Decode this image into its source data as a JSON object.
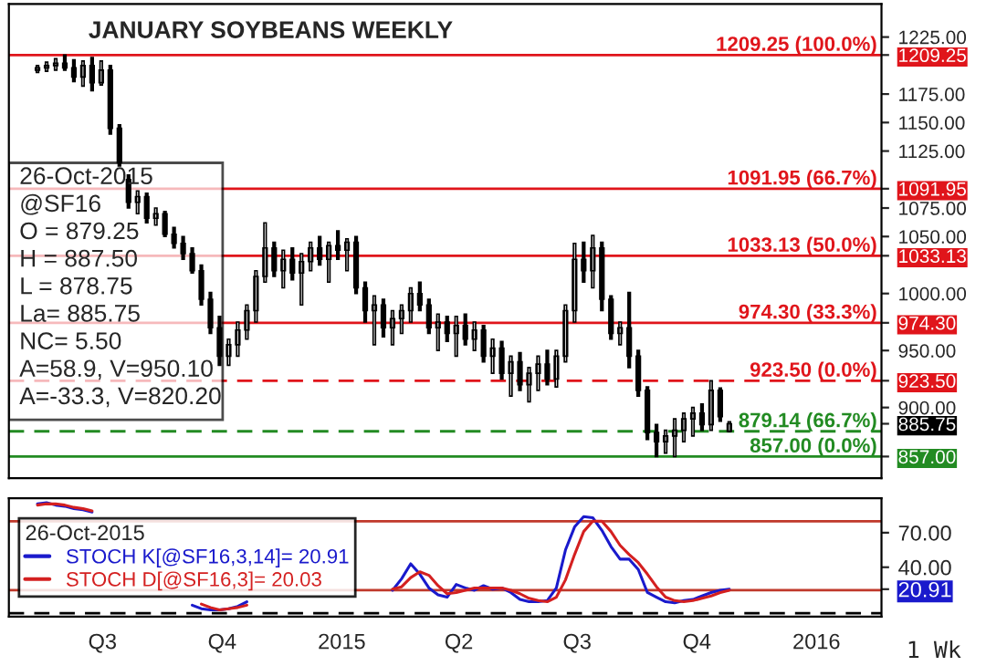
{
  "chart_data": [
    {
      "type": "candlestick",
      "title": "JANUARY SOYBEANS WEEKLY",
      "color": "#000000",
      "x": [
        "2014-05-12",
        "2014-05-19",
        "2014-05-26",
        "2014-06-02",
        "2014-06-09",
        "2014-06-16",
        "2014-06-23",
        "2014-06-30",
        "2014-07-07",
        "2014-07-14",
        "2014-07-21",
        "2014-07-28",
        "2014-08-04",
        "2014-08-11",
        "2014-08-18",
        "2014-08-25",
        "2014-09-01",
        "2014-09-08",
        "2014-09-15",
        "2014-09-22",
        "2014-09-29",
        "2014-10-06",
        "2014-10-13",
        "2014-10-20",
        "2014-10-27",
        "2014-11-03",
        "2014-11-10",
        "2014-11-17",
        "2014-11-24",
        "2014-12-01",
        "2014-12-08",
        "2014-12-15",
        "2014-12-22",
        "2014-12-29",
        "2015-01-05",
        "2015-01-12",
        "2015-01-19",
        "2015-01-26",
        "2015-02-02",
        "2015-02-09",
        "2015-02-16",
        "2015-02-23",
        "2015-03-02",
        "2015-03-09",
        "2015-03-16",
        "2015-03-23",
        "2015-03-30",
        "2015-04-06",
        "2015-04-13",
        "2015-04-20",
        "2015-04-27",
        "2015-05-04",
        "2015-05-11",
        "2015-05-18",
        "2015-05-25",
        "2015-06-01",
        "2015-06-08",
        "2015-06-15",
        "2015-06-22",
        "2015-06-29",
        "2015-07-06",
        "2015-07-13",
        "2015-07-20",
        "2015-07-27",
        "2015-08-03",
        "2015-08-10",
        "2015-08-17",
        "2015-08-24",
        "2015-08-31",
        "2015-09-07",
        "2015-09-14",
        "2015-09-21",
        "2015-09-28",
        "2015-10-05",
        "2015-10-12",
        "2015-10-19",
        "2015-10-26"
      ],
      "ohlc": [
        [
          1196,
          1200,
          1194,
          1198
        ],
        [
          1198,
          1203,
          1195,
          1200
        ],
        [
          1200,
          1206,
          1196,
          1202
        ],
        [
          1202,
          1209.25,
          1196,
          1198
        ],
        [
          1198,
          1205,
          1186,
          1190
        ],
        [
          1190,
          1204,
          1182,
          1200
        ],
        [
          1200,
          1207,
          1178,
          1185
        ],
        [
          1185,
          1204,
          1183,
          1196
        ],
        [
          1196,
          1200,
          1140,
          1145
        ],
        [
          1145,
          1148,
          1112,
          1115
        ],
        [
          1100,
          1104,
          1075,
          1080
        ],
        [
          1080,
          1090,
          1070,
          1085
        ],
        [
          1085,
          1088,
          1062,
          1066
        ],
        [
          1066,
          1075,
          1060,
          1070
        ],
        [
          1070,
          1072,
          1050,
          1052
        ],
        [
          1052,
          1058,
          1040,
          1044
        ],
        [
          1044,
          1050,
          1030,
          1035
        ],
        [
          1035,
          1040,
          1018,
          1020
        ],
        [
          1020,
          1025,
          990,
          995
        ],
        [
          995,
          1001,
          965,
          970
        ],
        [
          970,
          980,
          937,
          945
        ],
        [
          945,
          960,
          937,
          955
        ],
        [
          955,
          975,
          945,
          968
        ],
        [
          968,
          990,
          960,
          985
        ],
        [
          985,
          1020,
          975,
          1015
        ],
        [
          1015,
          1062,
          1010,
          1040
        ],
        [
          1040,
          1045,
          1015,
          1020
        ],
        [
          1020,
          1038,
          1005,
          1030
        ],
        [
          1030,
          1040,
          1012,
          1018
        ],
        [
          1018,
          1035,
          990,
          1028
        ],
        [
          1028,
          1045,
          1020,
          1040
        ],
        [
          1040,
          1050,
          1025,
          1030
        ],
        [
          1030,
          1045,
          1010,
          1042
        ],
        [
          1042,
          1055,
          1030,
          1038
        ],
        [
          1038,
          1048,
          1020,
          1045
        ],
        [
          1045,
          1050,
          1000,
          1005
        ],
        [
          1005,
          1010,
          975,
          985
        ],
        [
          985,
          998,
          955,
          990
        ],
        [
          990,
          995,
          962,
          970
        ],
        [
          970,
          985,
          955,
          978
        ],
        [
          978,
          990,
          965,
          985
        ],
        [
          985,
          1005,
          975,
          1000
        ],
        [
          1000,
          1010,
          985,
          990
        ],
        [
          990,
          995,
          965,
          970
        ],
        [
          970,
          982,
          950,
          975
        ],
        [
          975,
          980,
          958,
          965
        ],
        [
          965,
          980,
          945,
          972
        ],
        [
          972,
          982,
          955,
          960
        ],
        [
          960,
          975,
          950,
          968
        ],
        [
          968,
          972,
          940,
          945
        ],
        [
          945,
          960,
          930,
          952
        ],
        [
          952,
          958,
          925,
          930
        ],
        [
          930,
          945,
          910,
          940
        ],
        [
          940,
          948,
          915,
          920
        ],
        [
          920,
          935,
          905,
          930
        ],
        [
          930,
          945,
          915,
          938
        ],
        [
          938,
          950,
          920,
          925
        ],
        [
          925,
          950,
          918,
          945
        ],
        [
          945,
          990,
          940,
          985
        ],
        [
          985,
          1044,
          975,
          1030
        ],
        [
          1030,
          1045,
          1010,
          1020
        ],
        [
          1020,
          1051,
          1005,
          1040
        ],
        [
          1040,
          1045,
          985,
          995
        ],
        [
          995,
          998,
          960,
          965
        ],
        [
          965,
          975,
          955,
          970
        ],
        [
          970,
          1001,
          935,
          945
        ],
        [
          945,
          950,
          910,
          915
        ],
        [
          915,
          918,
          872,
          878
        ],
        [
          878,
          885,
          857,
          870
        ],
        [
          870,
          880,
          860,
          875
        ],
        [
          875,
          890,
          857,
          880
        ],
        [
          880,
          895,
          870,
          890
        ],
        [
          890,
          900,
          875,
          895
        ],
        [
          895,
          903,
          880,
          885
        ],
        [
          885,
          923.5,
          880,
          915
        ],
        [
          915,
          917,
          888,
          892
        ],
        [
          879.25,
          887.5,
          878.75,
          885.75
        ]
      ],
      "xlim": [
        "2014-04-20",
        "2016-02-20"
      ],
      "ylim": [
        838,
        1254
      ],
      "yticks": [
        {
          "value": 900,
          "label": "900.00"
        },
        {
          "value": 950,
          "label": "950.00"
        },
        {
          "value": 1000,
          "label": "1000.00"
        },
        {
          "value": 1050,
          "label": "1050.00"
        },
        {
          "value": 1075,
          "label": "1075.00"
        },
        {
          "value": 1125,
          "label": "1125.00"
        },
        {
          "value": 1150,
          "label": "1150.00"
        },
        {
          "value": 1175,
          "label": "1175.00"
        },
        {
          "value": 1225,
          "label": "1225.00"
        },
        {
          "value": 1209.25,
          "label": "1209.25"
        },
        {
          "value": 1091.95,
          "label": "1091.95"
        },
        {
          "value": 1033.13,
          "label": "1033.13"
        },
        {
          "value": 974.3,
          "label": "974.30"
        },
        {
          "value": 923.5,
          "label": "923.50"
        },
        {
          "value": 885.75,
          "label": "885.75"
        },
        {
          "value": 857.0,
          "label": "857.00"
        }
      ],
      "tick_labels": "y",
      "ref_lines": [
        {
          "axis": "y",
          "value": 1209.25,
          "label": "1209.25 (100.0%)",
          "color": "#e0151b",
          "line_style": "solid"
        },
        {
          "axis": "y",
          "value": 1091.95,
          "label": "1091.95 (66.7%)",
          "color": "#e0151b",
          "line_style": "solid"
        },
        {
          "axis": "y",
          "value": 1033.13,
          "label": "1033.13 (50.0%)",
          "color": "#e0151b",
          "line_style": "solid"
        },
        {
          "axis": "y",
          "value": 974.3,
          "label": "974.30 (33.3%)",
          "color": "#e0151b",
          "line_style": "solid"
        },
        {
          "axis": "y",
          "value": 923.5,
          "label": "923.50 (0.0%)",
          "color": "#e0151b",
          "line_style": "dashed"
        },
        {
          "axis": "y",
          "value": 879.14,
          "label": "879.14 (66.7%)",
          "color": "#228b22",
          "line_style": "dashed"
        },
        {
          "axis": "y",
          "value": 857.0,
          "label": "857.00 (0.0%)",
          "color": "#228b22",
          "line_style": "solid"
        }
      ],
      "annotations": [
        "26-Oct-2015",
        "@SF16",
        "O = 879.25",
        "H = 887.50",
        "L = 878.75",
        "La= 885.75",
        "NC= 5.50",
        "A=58.9, V=950.10",
        "A=-33.3, V=820.20"
      ]
    },
    {
      "type": "line",
      "xlabel": "1 Wk",
      "legend_title": "26-Oct-2015",
      "legend": "left",
      "x": [
        "2014-05-12",
        "2014-05-19",
        "2014-05-26",
        "2014-06-02",
        "2014-06-09",
        "2014-06-16",
        "2014-06-23",
        "2014-06-30",
        "2014-07-07",
        "2014-07-14",
        "2014-07-21",
        "2014-07-28",
        "2014-08-04",
        "2014-08-11",
        "2014-08-18",
        "2014-08-25",
        "2014-09-01",
        "2014-09-08",
        "2014-09-15",
        "2014-09-22",
        "2014-09-29",
        "2014-10-06",
        "2014-10-13",
        "2014-10-20",
        "2014-10-27",
        "2014-11-03",
        "2014-11-10",
        "2014-11-17",
        "2014-11-24",
        "2014-12-01",
        "2014-12-08",
        "2014-12-15",
        "2014-12-22",
        "2014-12-29",
        "2015-01-05",
        "2015-01-12",
        "2015-01-19",
        "2015-01-26",
        "2015-02-02",
        "2015-02-09",
        "2015-02-16",
        "2015-02-23",
        "2015-03-02",
        "2015-03-09",
        "2015-03-16",
        "2015-03-23",
        "2015-03-30",
        "2015-04-06",
        "2015-04-13",
        "2015-04-20",
        "2015-04-27",
        "2015-05-04",
        "2015-05-11",
        "2015-05-18",
        "2015-05-25",
        "2015-06-01",
        "2015-06-08",
        "2015-06-15",
        "2015-06-22",
        "2015-06-29",
        "2015-07-06",
        "2015-07-13",
        "2015-07-20",
        "2015-07-27",
        "2015-08-03",
        "2015-08-10",
        "2015-08-17",
        "2015-08-24",
        "2015-08-31",
        "2015-09-07",
        "2015-09-14",
        "2015-09-21",
        "2015-09-28",
        "2015-10-05",
        "2015-10-12",
        "2015-10-19",
        "2015-10-26"
      ],
      "series": [
        {
          "name": "STOCH K[@SF16,3,14]= 20.91",
          "color": "#1a1acc",
          "values": [
            95,
            96,
            94,
            93,
            91,
            90,
            88,
            null,
            null,
            null,
            null,
            null,
            null,
            null,
            null,
            null,
            null,
            7,
            4,
            3,
            3,
            4,
            6,
            10,
            null,
            null,
            null,
            null,
            null,
            null,
            null,
            null,
            null,
            null,
            null,
            null,
            null,
            null,
            null,
            20,
            30,
            43,
            34,
            22,
            16,
            14,
            25,
            22,
            20,
            24,
            21,
            22,
            18,
            12,
            10,
            10,
            11,
            22,
            55,
            75,
            84,
            83,
            72,
            58,
            47,
            47,
            38,
            18,
            14,
            10,
            9,
            11,
            12,
            15,
            18,
            20,
            20.91
          ]
        },
        {
          "name": "STOCH D[@SF16,3]= 20.03",
          "color": "#d42020",
          "values": [
            94,
            95,
            95,
            94,
            92,
            91,
            89,
            null,
            null,
            null,
            null,
            null,
            null,
            null,
            null,
            null,
            null,
            null,
            8,
            5,
            3,
            4,
            5,
            7,
            null,
            null,
            null,
            null,
            null,
            null,
            null,
            null,
            null,
            null,
            null,
            null,
            null,
            null,
            null,
            21,
            23,
            31,
            36,
            33,
            24,
            17,
            18,
            20,
            22,
            22,
            22,
            22,
            20,
            17,
            13,
            11,
            10,
            14,
            29,
            51,
            71,
            80,
            80,
            71,
            59,
            51,
            44,
            34,
            23,
            14,
            11,
            10,
            11,
            13,
            15,
            18,
            20.03
          ]
        }
      ],
      "xlim": [
        "2014-04-20",
        "2016-02-20"
      ],
      "xticks": [
        {
          "value": "2014-07-01",
          "label": "Q3"
        },
        {
          "value": "2014-10-01",
          "label": "Q4"
        },
        {
          "value": "2015-01-01",
          "label": "2015"
        },
        {
          "value": "2015-04-01",
          "label": "Q2"
        },
        {
          "value": "2015-07-01",
          "label": "Q3"
        },
        {
          "value": "2015-10-01",
          "label": "Q4"
        },
        {
          "value": "2016-01-01",
          "label": "2016"
        }
      ],
      "ylim": [
        -3,
        100
      ],
      "yticks": [
        {
          "value": 40,
          "label": "40.00"
        },
        {
          "value": 70,
          "label": "70.00"
        },
        {
          "value": 20.91,
          "label": "20.91"
        }
      ],
      "ref_lines": [
        {
          "axis": "y",
          "value": 80,
          "color": "#c0392b",
          "line_style": "solid"
        },
        {
          "axis": "y",
          "value": 20,
          "color": "#c0392b",
          "line_style": "solid"
        },
        {
          "axis": "y",
          "value": 0,
          "color": "#000000",
          "line_style": "dashed"
        }
      ]
    }
  ]
}
